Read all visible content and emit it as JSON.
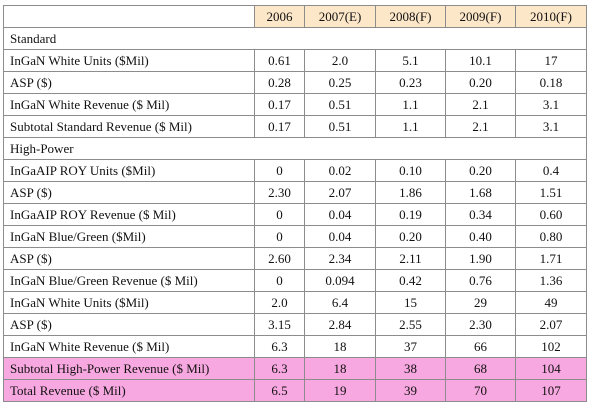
{
  "table": {
    "headers": [
      "2006",
      "2007(E)",
      "2008(F)",
      "2009(F)",
      "2010(F)"
    ],
    "rows": [
      {
        "type": "section",
        "label": "Standard"
      },
      {
        "type": "data",
        "label": "InGaN White Units ($Mil)",
        "values": [
          "0.61",
          "2.0",
          "5.1",
          "10.1",
          "17"
        ]
      },
      {
        "type": "data",
        "label": "ASP ($)",
        "values": [
          "0.28",
          "0.25",
          "0.23",
          "0.20",
          "0.18"
        ]
      },
      {
        "type": "data",
        "label": "InGaN White Revenue ($ Mil)",
        "values": [
          "0.17",
          "0.51",
          "1.1",
          "2.1",
          "3.1"
        ]
      },
      {
        "type": "data",
        "label": "Subtotal Standard Revenue ($ Mil)",
        "values": [
          "0.17",
          "0.51",
          "1.1",
          "2.1",
          "3.1"
        ]
      },
      {
        "type": "section",
        "label": "High-Power"
      },
      {
        "type": "data",
        "label": "InGaAIP ROY Units ($Mil)",
        "values": [
          "0",
          "0.02",
          "0.10",
          "0.20",
          "0.4"
        ]
      },
      {
        "type": "data",
        "label": "ASP ($)",
        "values": [
          "2.30",
          "2.07",
          "1.86",
          "1.68",
          "1.51"
        ]
      },
      {
        "type": "data",
        "label": "InGaAIP ROY Revenue ($ Mil)",
        "values": [
          "0",
          "0.04",
          "0.19",
          "0.34",
          "0.60"
        ]
      },
      {
        "type": "data",
        "label": "InGaN Blue/Green ($Mil)",
        "values": [
          "0",
          "0.04",
          "0.20",
          "0.40",
          "0.80"
        ]
      },
      {
        "type": "data",
        "label": "ASP ($)",
        "values": [
          "2.60",
          "2.34",
          "2.11",
          "1.90",
          "1.71"
        ]
      },
      {
        "type": "data",
        "label": "InGaN Blue/Green Revenue ($ Mil)",
        "values": [
          "0",
          "0.094",
          "0.42",
          "0.76",
          "1.36"
        ]
      },
      {
        "type": "data",
        "label": "InGaN White Units ($Mil)",
        "values": [
          "2.0",
          "6.4",
          "15",
          "29",
          "49"
        ]
      },
      {
        "type": "data",
        "label": "ASP ($)",
        "values": [
          "3.15",
          "2.84",
          "2.55",
          "2.30",
          "2.07"
        ]
      },
      {
        "type": "data",
        "label": "InGaN White Revenue ($ Mil)",
        "values": [
          "6.3",
          "18",
          "37",
          "66",
          "102"
        ]
      },
      {
        "type": "highlight",
        "label": "Subtotal High-Power Revenue ($ Mil)",
        "values": [
          "6.3",
          "18",
          "38",
          "68",
          "104"
        ]
      },
      {
        "type": "highlight",
        "label": "Total Revenue ($ Mil)",
        "values": [
          "6.5",
          "19",
          "39",
          "70",
          "107"
        ]
      }
    ],
    "colors": {
      "header_bg": "#fde7c9",
      "highlight_bg": "#f8a8e0",
      "border": "#8c8c8c"
    }
  }
}
